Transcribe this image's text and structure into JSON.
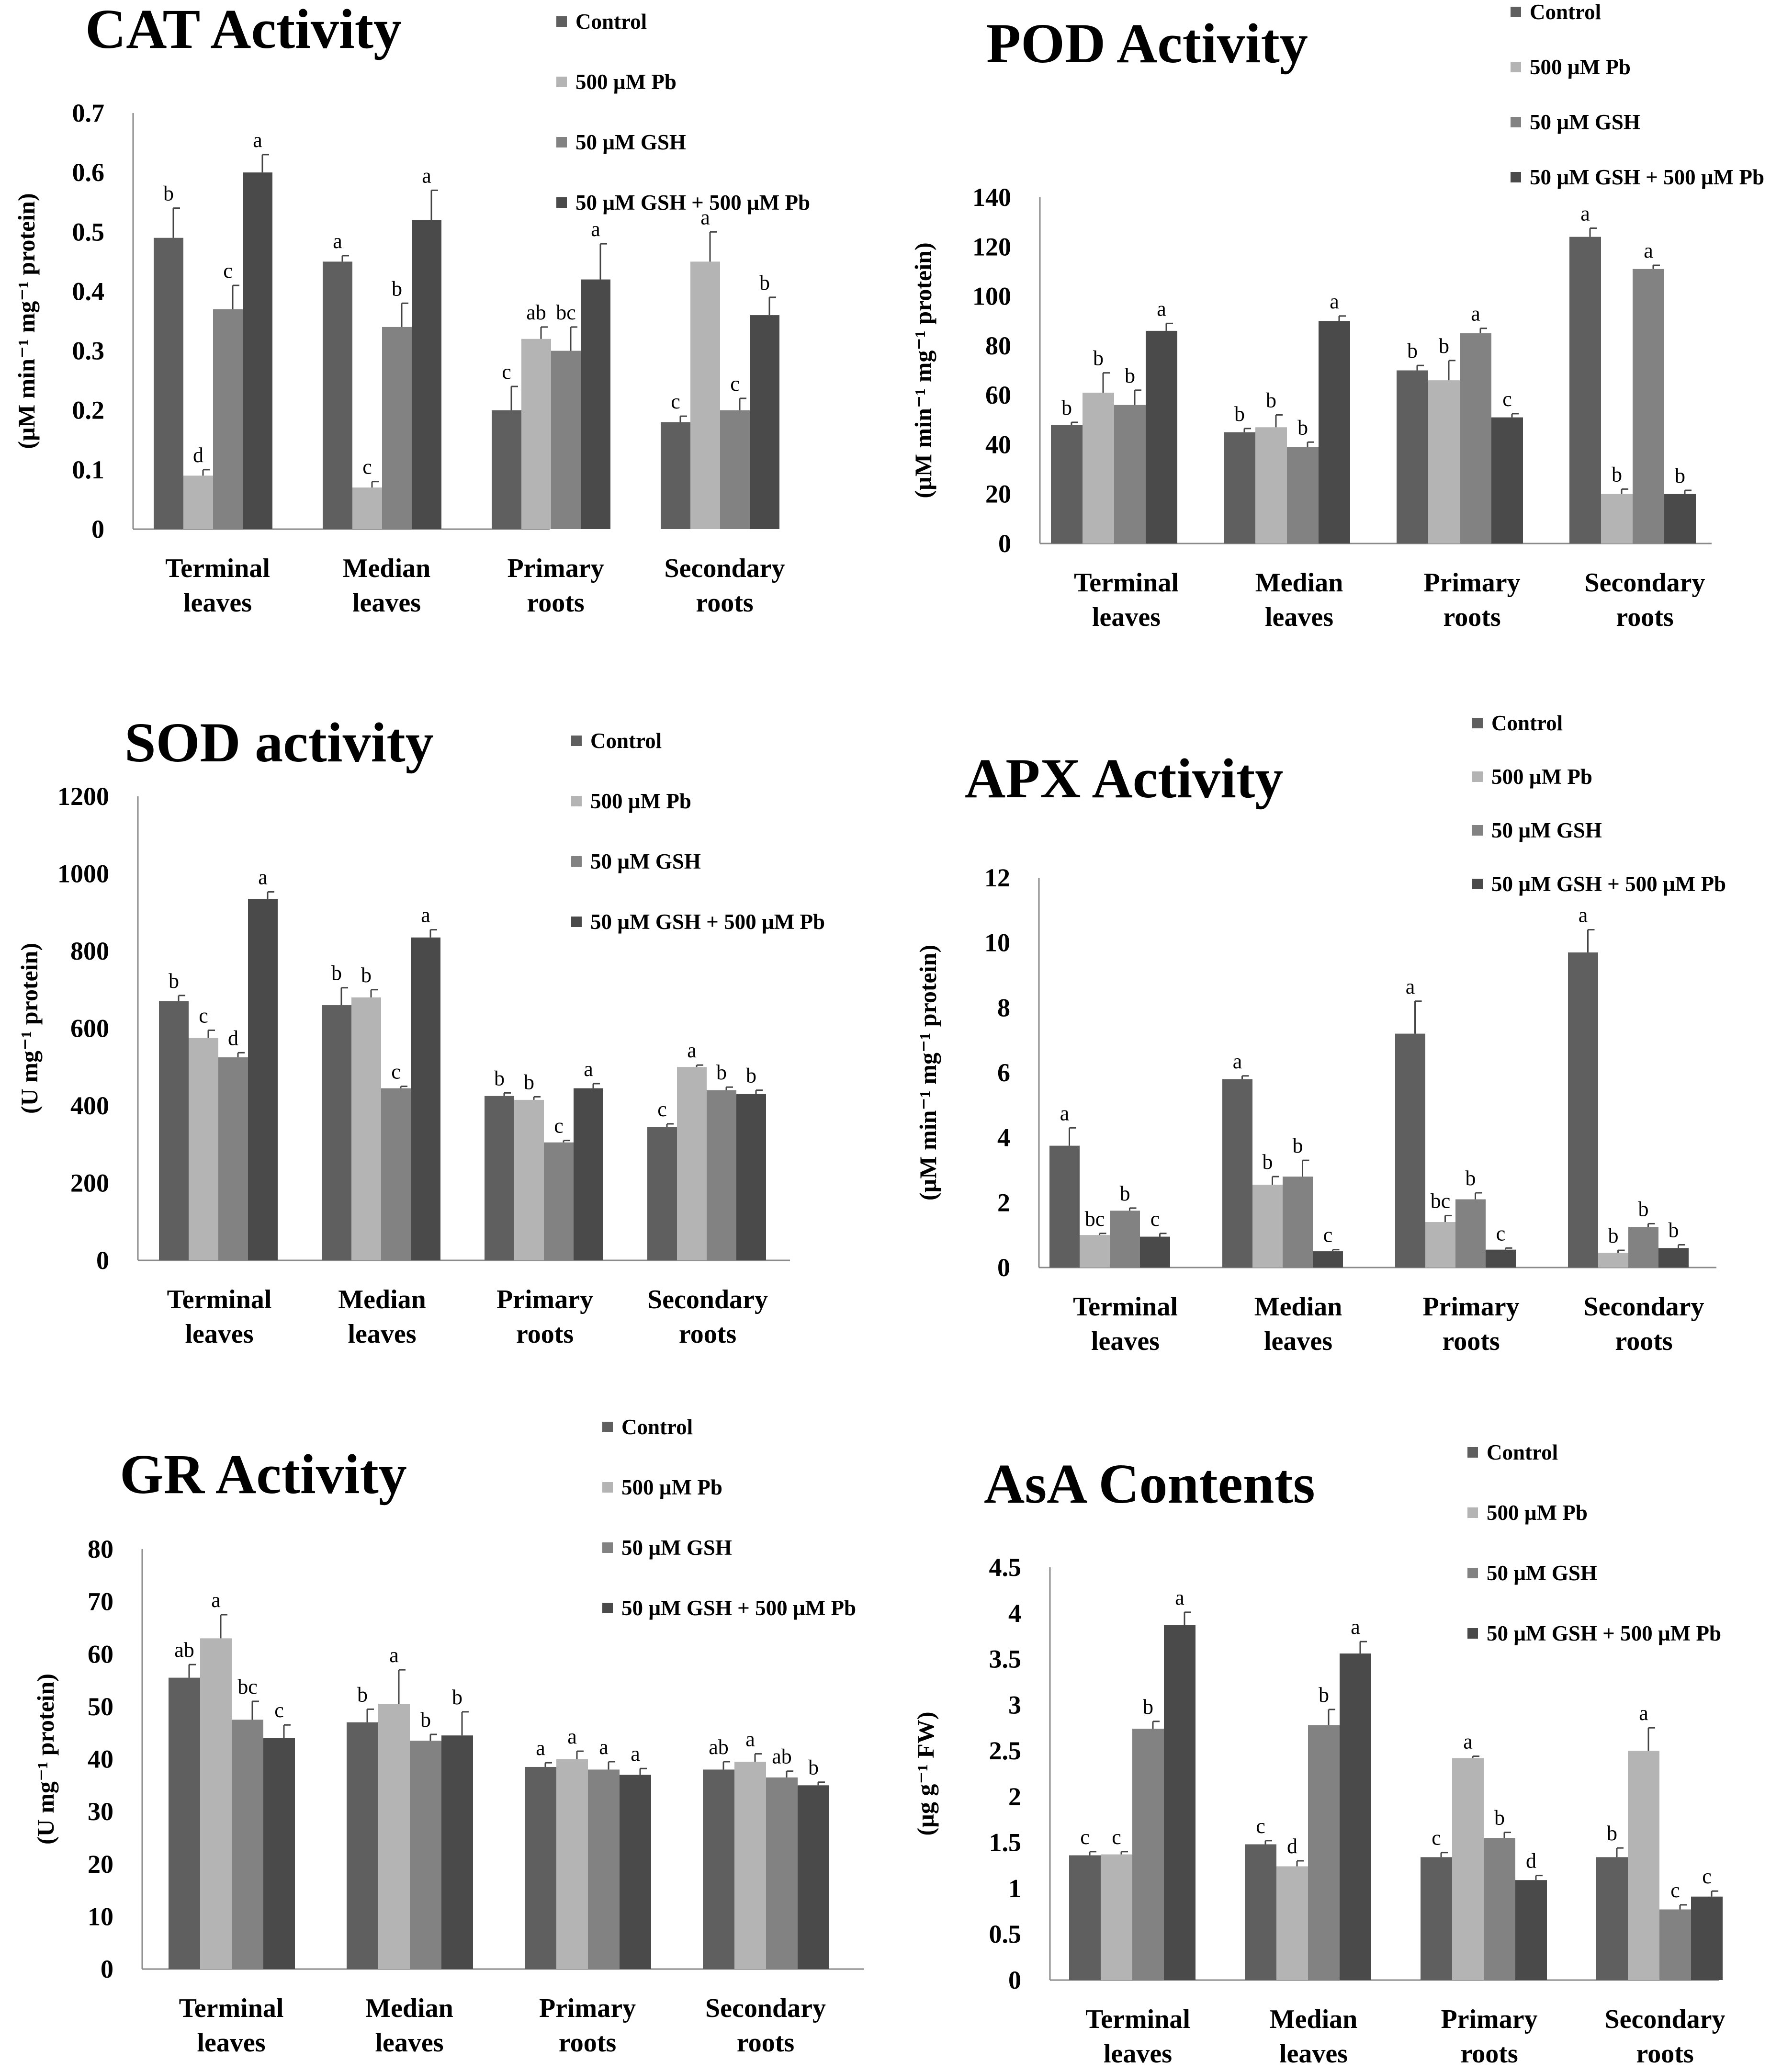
{
  "colors": {
    "control": "#5f5f5f",
    "pb500": "#b4b4b4",
    "gsh50": "#828282",
    "gsh_pb": "#4a4a4a"
  },
  "chart_data": [
    {
      "id": "cat",
      "type": "bar",
      "title": "CAT Activity",
      "ylabel": "(µM min⁻¹ mg⁻¹ protein)",
      "ylim": [
        0,
        0.7
      ],
      "yticks": [
        "0",
        "0.1",
        "0.2",
        "0.3",
        "0.4",
        "0.5",
        "0.6",
        "0.7"
      ],
      "categories": [
        [
          "Terminal",
          "leaves"
        ],
        [
          "Median",
          "leaves"
        ],
        [
          "Primary",
          "roots"
        ],
        [
          "Secondary",
          "roots"
        ]
      ],
      "series": [
        {
          "name": "Control",
          "values": [
            0.49,
            0.45,
            0.2,
            0.18
          ],
          "errors": [
            0.05,
            0.01,
            0.04,
            0.01
          ],
          "labels": [
            "b",
            "a",
            "c",
            "c"
          ]
        },
        {
          "name": "500 µM Pb",
          "values": [
            0.09,
            0.07,
            0.32,
            0.45
          ],
          "errors": [
            0.01,
            0.01,
            0.02,
            0.05
          ],
          "labels": [
            "d",
            "c",
            "ab",
            "a"
          ]
        },
        {
          "name": "50   µM GSH",
          "values": [
            0.37,
            0.34,
            0.3,
            0.2
          ],
          "errors": [
            0.04,
            0.04,
            0.04,
            0.02
          ],
          "labels": [
            "c",
            "b",
            "bc",
            "c"
          ]
        },
        {
          "name": "50 µM GSH + 500 µM Pb",
          "values": [
            0.6,
            0.52,
            0.42,
            0.36
          ],
          "errors": [
            0.03,
            0.05,
            0.06,
            0.03
          ],
          "labels": [
            "a",
            "a",
            "a",
            "b"
          ]
        }
      ]
    },
    {
      "id": "pod",
      "type": "bar",
      "title": "POD Activity",
      "ylabel": "(µM min⁻¹ mg⁻¹ protein)",
      "ylim": [
        0,
        140
      ],
      "yticks": [
        "0",
        "20",
        "40",
        "60",
        "80",
        "100",
        "120",
        "140"
      ],
      "categories": [
        [
          "Terminal",
          "leaves"
        ],
        [
          "Median",
          "leaves"
        ],
        [
          "Primary",
          "roots"
        ],
        [
          "Secondary",
          "roots"
        ]
      ],
      "series": [
        {
          "name": "Control",
          "values": [
            48,
            45,
            70,
            124
          ],
          "errors": [
            1,
            1.5,
            2,
            3.5
          ],
          "labels": [
            "b",
            "b",
            "b",
            "a"
          ]
        },
        {
          "name": "500 µM Pb",
          "values": [
            61,
            47,
            66,
            20
          ],
          "errors": [
            8,
            5,
            8,
            2
          ],
          "labels": [
            "b",
            "b",
            "b",
            "b"
          ]
        },
        {
          "name": "50   µM GSH",
          "values": [
            56,
            39,
            85,
            111
          ],
          "errors": [
            6,
            2,
            2,
            1.5
          ],
          "labels": [
            "b",
            "b",
            "a",
            "a"
          ]
        },
        {
          "name": "50 µM GSH + 500 µM Pb",
          "values": [
            86,
            90,
            51,
            20
          ],
          "errors": [
            3,
            2,
            1.5,
            1.5
          ],
          "labels": [
            "a",
            "a",
            "c",
            "b"
          ]
        }
      ]
    },
    {
      "id": "sod",
      "type": "bar",
      "title": "SOD activity",
      "ylabel": "(U mg⁻¹ protein)",
      "ylim": [
        0,
        1200
      ],
      "yticks": [
        "0",
        "200",
        "400",
        "600",
        "800",
        "1000",
        "1200"
      ],
      "categories": [
        [
          "Terminal",
          "leaves"
        ],
        [
          "Median",
          "leaves"
        ],
        [
          "Primary",
          "roots"
        ],
        [
          "Secondary",
          "roots"
        ]
      ],
      "series": [
        {
          "name": "Control",
          "values": [
            670,
            660,
            425,
            345
          ],
          "errors": [
            15,
            45,
            8,
            8
          ],
          "labels": [
            "b",
            "b",
            "b",
            "c"
          ]
        },
        {
          "name": "500 µM Pb",
          "values": [
            575,
            680,
            415,
            500
          ],
          "errors": [
            20,
            20,
            8,
            5
          ],
          "labels": [
            "c",
            "b",
            "b",
            "a"
          ]
        },
        {
          "name": "50   µM GSH",
          "values": [
            525,
            445,
            305,
            440
          ],
          "errors": [
            12,
            5,
            5,
            8
          ],
          "labels": [
            "d",
            "c",
            "c",
            "b"
          ]
        },
        {
          "name": "50 µM GSH + 500 µM Pb",
          "values": [
            935,
            835,
            445,
            430
          ],
          "errors": [
            18,
            20,
            12,
            10
          ],
          "labels": [
            "a",
            "a",
            "a",
            "b"
          ]
        }
      ]
    },
    {
      "id": "apx",
      "type": "bar",
      "title": "APX Activity",
      "ylabel": "(µM min⁻¹ mg⁻¹ protein)",
      "ylim": [
        0,
        12
      ],
      "yticks": [
        "0",
        "2",
        "4",
        "6",
        "8",
        "10",
        "12"
      ],
      "categories": [
        [
          "Terminal",
          "leaves"
        ],
        [
          "Median",
          "leaves"
        ],
        [
          "Primary",
          "roots"
        ],
        [
          "Secondary",
          "roots"
        ]
      ],
      "series": [
        {
          "name": "Control",
          "values": [
            3.75,
            5.8,
            7.2,
            9.7
          ],
          "errors": [
            0.55,
            0.1,
            1.0,
            0.7
          ],
          "labels": [
            "a",
            "a",
            "a",
            "a"
          ]
        },
        {
          "name": "500 µM Pb",
          "values": [
            1.0,
            2.55,
            1.4,
            0.45
          ],
          "errors": [
            0.05,
            0.25,
            0.2,
            0.08
          ],
          "labels": [
            "bc",
            "b",
            "bc",
            "b"
          ]
        },
        {
          "name": "50   µM GSH",
          "values": [
            1.75,
            2.8,
            2.1,
            1.25
          ],
          "errors": [
            0.08,
            0.5,
            0.2,
            0.1
          ],
          "labels": [
            "b",
            "b",
            "b",
            "b"
          ]
        },
        {
          "name": "50 µM GSH + 500 µM Pb",
          "values": [
            0.95,
            0.5,
            0.55,
            0.6
          ],
          "errors": [
            0.1,
            0.05,
            0.05,
            0.1
          ],
          "labels": [
            "c",
            "c",
            "c",
            "b"
          ]
        }
      ]
    },
    {
      "id": "gr",
      "type": "bar",
      "title": "GR Activity",
      "ylabel": "(U mg⁻¹ protein)",
      "ylim": [
        0,
        80
      ],
      "yticks": [
        "0",
        "10",
        "20",
        "30",
        "40",
        "50",
        "60",
        "70",
        "80"
      ],
      "categories": [
        [
          "Terminal",
          "leaves"
        ],
        [
          "Median",
          "leaves"
        ],
        [
          "Primary",
          "roots"
        ],
        [
          "Secondary",
          "roots"
        ]
      ],
      "series": [
        {
          "name": "Control",
          "values": [
            55.5,
            47,
            38.5,
            38
          ],
          "errors": [
            2.5,
            2.5,
            0.8,
            1.5
          ],
          "labels": [
            "ab",
            "b",
            "a",
            "ab"
          ]
        },
        {
          "name": "500 µM Pb",
          "values": [
            63,
            50.5,
            40,
            39.5
          ],
          "errors": [
            4.5,
            6.5,
            1.5,
            1.5
          ],
          "labels": [
            "a",
            "a",
            "a",
            "a"
          ]
        },
        {
          "name": "50   µM GSH",
          "values": [
            47.5,
            43.5,
            38,
            36.5
          ],
          "errors": [
            3.5,
            1.2,
            1.5,
            1.2
          ],
          "labels": [
            "bc",
            "b",
            "a",
            "ab"
          ]
        },
        {
          "name": "50 µM GSH + 500 µM Pb",
          "values": [
            44,
            44.5,
            37,
            35
          ],
          "errors": [
            2.5,
            4.5,
            1.2,
            0.6
          ],
          "labels": [
            "c",
            "b",
            "a",
            "b"
          ]
        }
      ]
    },
    {
      "id": "asa",
      "type": "bar",
      "title": "AsA Contents",
      "ylabel": "(µg g⁻¹ FW)",
      "ylim": [
        0,
        4.5
      ],
      "yticks": [
        "0",
        "0.5",
        "1",
        "1.5",
        "2",
        "2.5",
        "3",
        "3.5",
        "4",
        "4.5"
      ],
      "categories": [
        [
          "Terminal",
          "leaves"
        ],
        [
          "Median",
          "leaves"
        ],
        [
          "Primary",
          "roots"
        ],
        [
          "Secondary",
          "roots"
        ]
      ],
      "series": [
        {
          "name": "Control",
          "values": [
            1.36,
            1.48,
            1.34,
            1.34
          ],
          "errors": [
            0.04,
            0.04,
            0.05,
            0.1
          ],
          "labels": [
            "c",
            "c",
            "c",
            "b"
          ]
        },
        {
          "name": "500 µM Pb",
          "values": [
            1.37,
            1.24,
            2.42,
            2.5
          ],
          "errors": [
            0.03,
            0.06,
            0.02,
            0.25
          ],
          "labels": [
            "c",
            "d",
            "a",
            "a"
          ]
        },
        {
          "name": "50   µM GSH",
          "values": [
            2.74,
            2.78,
            1.55,
            0.77
          ],
          "errors": [
            0.08,
            0.17,
            0.06,
            0.05
          ],
          "labels": [
            "b",
            "b",
            "b",
            "c"
          ]
        },
        {
          "name": "50 µM GSH + 500 µM Pb",
          "values": [
            3.87,
            3.56,
            1.09,
            0.91
          ],
          "errors": [
            0.14,
            0.13,
            0.05,
            0.06
          ],
          "labels": [
            "a",
            "a",
            "d",
            "c"
          ]
        }
      ]
    }
  ]
}
